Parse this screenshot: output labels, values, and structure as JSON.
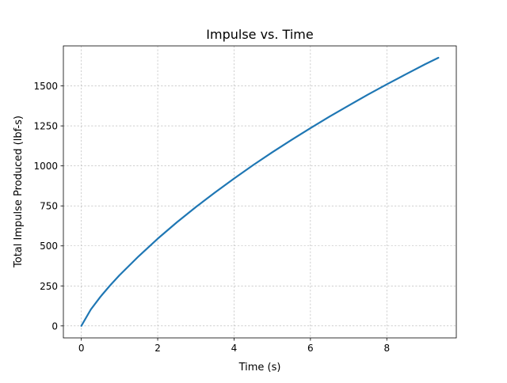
{
  "chart_data": {
    "type": "line",
    "title": "Impulse vs. Time",
    "xlabel": "Time (s)",
    "ylabel": "Total Impulse Produced (lbf-s)",
    "xlim": [
      -0.47,
      9.82
    ],
    "ylim": [
      -75,
      1750
    ],
    "xticks": [
      0,
      2,
      4,
      6,
      8
    ],
    "xtick_labels": [
      "0",
      "2",
      "4",
      "6",
      "8"
    ],
    "yticks": [
      0,
      250,
      500,
      750,
      1000,
      1250,
      1500
    ],
    "ytick_labels": [
      "0",
      "250",
      "500",
      "750",
      "1000",
      "1250",
      "1500"
    ],
    "grid": true,
    "series": [
      {
        "color": "#1f77b4",
        "x": [
          0,
          0.25,
          0.5,
          0.75,
          1.0,
          1.5,
          2.0,
          2.5,
          3.0,
          3.5,
          4.0,
          4.5,
          5.0,
          5.5,
          6.0,
          6.5,
          7.0,
          7.5,
          8.0,
          8.5,
          9.0,
          9.35
        ],
        "y": [
          0,
          103,
          182,
          252,
          317,
          435,
          545,
          647,
          743,
          834,
          921,
          1005,
          1085,
          1162,
          1236,
          1308,
          1377,
          1445,
          1510,
          1573,
          1635,
          1676
        ]
      }
    ]
  }
}
